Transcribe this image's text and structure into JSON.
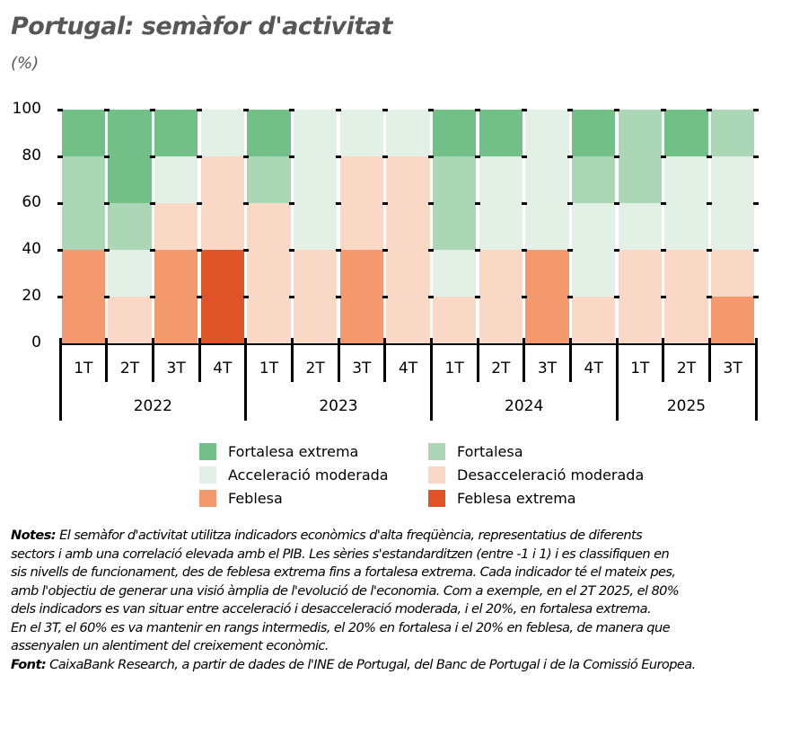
{
  "title": "Portugal: semàfor d'activitat",
  "subtitle": "(%)",
  "colors": {
    "fortalesa_extrema": "#72bf87",
    "fortalesa": "#acd7b7",
    "acceleracio_moderada": "#e2f0e6",
    "desacceleracio_moderada": "#fad8c6",
    "feblesa": "#f4996d",
    "feblesa_extrema": "#e05326"
  },
  "chart_data": {
    "type": "bar",
    "stacked": true,
    "title": "Portugal: semàfor d'activitat",
    "subtitle": "(%)",
    "xlabel": "",
    "ylabel": "%",
    "ylim": [
      0,
      100
    ],
    "yticks": [
      "0",
      "20",
      "40",
      "60",
      "80",
      "100"
    ],
    "grid": false,
    "legend_position": "bottom",
    "categories": [
      "1T 2022",
      "2T 2022",
      "3T 2022",
      "4T 2022",
      "1T 2023",
      "2T 2023",
      "3T 2023",
      "4T 2023",
      "1T 2024",
      "2T 2024",
      "3T 2024",
      "4T 2024",
      "1T 2025",
      "2T 2025",
      "3T 2025"
    ],
    "quarter_labels": [
      "1T",
      "2T",
      "3T",
      "4T",
      "1T",
      "2T",
      "3T",
      "4T",
      "1T",
      "2T",
      "3T",
      "4T",
      "1T",
      "2T",
      "3T"
    ],
    "year_groups": [
      {
        "label": "2022",
        "start": 0,
        "count": 4
      },
      {
        "label": "2023",
        "start": 4,
        "count": 4
      },
      {
        "label": "2024",
        "start": 8,
        "count": 4
      },
      {
        "label": "2025",
        "start": 12,
        "count": 3
      }
    ],
    "series": [
      {
        "name": "Feblesa extrema",
        "key": "feblesa_extrema",
        "values": [
          0,
          0,
          0,
          40,
          0,
          0,
          0,
          0,
          0,
          0,
          0,
          0,
          0,
          0,
          0
        ]
      },
      {
        "name": "Feblesa",
        "key": "feblesa",
        "values": [
          40,
          0,
          40,
          0,
          0,
          0,
          40,
          0,
          0,
          0,
          40,
          0,
          0,
          0,
          20
        ]
      },
      {
        "name": "Desacceleració moderada",
        "key": "desacceleracio_moderada",
        "values": [
          0,
          20,
          20,
          40,
          60,
          40,
          40,
          80,
          20,
          40,
          0,
          20,
          40,
          40,
          20
        ]
      },
      {
        "name": "Acceleració moderada",
        "key": "acceleracio_moderada",
        "values": [
          0,
          20,
          20,
          20,
          0,
          60,
          20,
          20,
          20,
          40,
          60,
          40,
          20,
          40,
          40
        ]
      },
      {
        "name": "Fortalesa",
        "key": "fortalesa",
        "values": [
          40,
          20,
          0,
          0,
          20,
          0,
          0,
          0,
          40,
          0,
          0,
          20,
          40,
          0,
          20
        ]
      },
      {
        "name": "Fortalesa extrema",
        "key": "fortalesa_extrema",
        "values": [
          20,
          40,
          20,
          0,
          20,
          0,
          0,
          0,
          20,
          20,
          0,
          20,
          0,
          20,
          0
        ]
      }
    ]
  },
  "legend": [
    {
      "label": "Fortalesa extrema",
      "key": "fortalesa_extrema"
    },
    {
      "label": "Fortalesa",
      "key": "fortalesa"
    },
    {
      "label": "Acceleració moderada",
      "key": "acceleracio_moderada"
    },
    {
      "label": "Desacceleració moderada",
      "key": "desacceleracio_moderada"
    },
    {
      "label": "Feblesa",
      "key": "feblesa"
    },
    {
      "label": "Feblesa extrema",
      "key": "feblesa_extrema"
    }
  ],
  "notes": {
    "label": "Notes:",
    "lines": [
      " El semàfor d'activitat utilitza indicadors econòmics d'alta freqüència,  representatius de diferents",
      "sectors i amb una correlació elevada amb el PIB. Les sèries s'estandarditzen (entre -1 i 1) i es classifiquen en",
      "sis nivells de funcionament, des de feblesa extrema fins a fortalesa extrema. Cada indicador té el mateix pes,",
      "amb l'objectiu de generar una visió àmplia de l'evolució de l'economia. Com a exemple, en el 2T 2025, el 80%",
      "dels indicadors es van situar entre acceleració i desacceleració moderada, i el 20%, en fortalesa extrema.",
      "En el 3T, el 60% es va mantenir en rangs intermedis, el 20% en fortalesa i el 20% en feblesa, de manera que",
      "assenyalen un alentiment del creixement econòmic."
    ],
    "source_label": "Font:",
    "source_text": " CaixaBank Research, a partir de dades de l'INE de Portugal, del Banc de Portugal i de la Comissió Europea."
  }
}
